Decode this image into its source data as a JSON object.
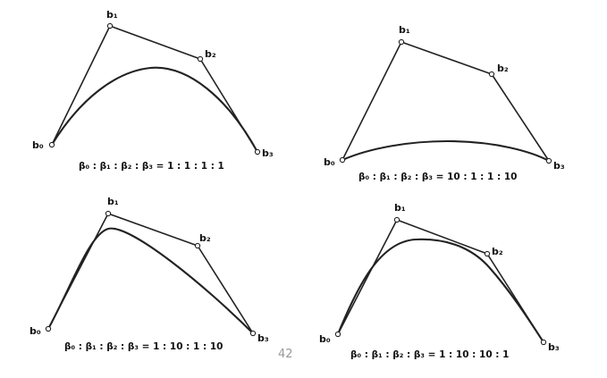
{
  "page_number": "42",
  "colors": {
    "ink": "#222222",
    "page_number": "#999999"
  },
  "figures": [
    {
      "name": "top-left",
      "ratio_text": "β₀ : β₁ : β₂ : β₃ = 1 : 1 : 1 : 1",
      "points": [
        {
          "label": "b₀"
        },
        {
          "label": "b₁"
        },
        {
          "label": "b₂"
        },
        {
          "label": "b₃"
        }
      ]
    },
    {
      "name": "top-right",
      "ratio_text": "β₀ : β₁ : β₂ : β₃  =  10 : 1 : 1 : 10",
      "points": [
        {
          "label": "b₀"
        },
        {
          "label": "b₁"
        },
        {
          "label": "b₂"
        },
        {
          "label": "b₃"
        }
      ]
    },
    {
      "name": "bottom-left",
      "ratio_text": "β₀ : β₁ : β₂ : β₃  =  1 : 10 : 1 : 10",
      "points": [
        {
          "label": "b₀"
        },
        {
          "label": "b₁"
        },
        {
          "label": "b₂"
        },
        {
          "label": "b₃"
        }
      ]
    },
    {
      "name": "bottom-right",
      "ratio_text": "β₀ : β₁ : β₂ : β₃   =   1 : 10 : 10 : 1",
      "points": [
        {
          "label": "b₀"
        },
        {
          "label": "b₁"
        },
        {
          "label": "b₂"
        },
        {
          "label": "b₃"
        }
      ]
    }
  ]
}
